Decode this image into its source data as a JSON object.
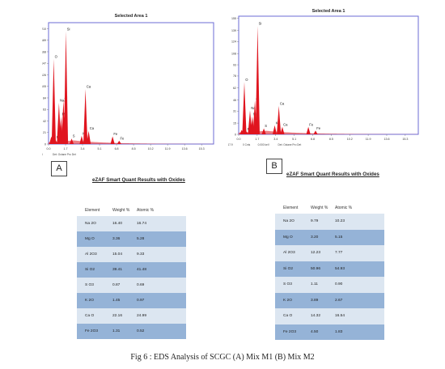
{
  "chart_data": [
    {
      "type": "bar",
      "panel": "A",
      "title": "Selected Area 1",
      "xlim": [
        0,
        16.5
      ],
      "ylim": [
        0,
        221
      ],
      "x_ticks": [
        "0.0",
        "1.7",
        "3.4",
        "5.1",
        "6.8",
        "8.5",
        "10.2",
        "11.9",
        "13.6",
        "15.3"
      ],
      "y_ticks": [
        "0",
        "21",
        "42",
        "63",
        "84",
        "105",
        "126",
        "147",
        "168",
        "189",
        "210"
      ],
      "footer": {
        "lsec": "Lsec: 28.8",
        "det": "Det: Octane Pro Det"
      },
      "peaks": [
        {
          "x": 0.28,
          "y": 14,
          "label": "C"
        },
        {
          "x": 0.52,
          "y": 155,
          "label": "O"
        },
        {
          "x": 0.7,
          "y": 8,
          "label": "Fe"
        },
        {
          "x": 1.04,
          "y": 75,
          "label": "Na"
        },
        {
          "x": 1.25,
          "y": 50,
          "label": "Mg"
        },
        {
          "x": 1.49,
          "y": 80,
          "label": "Al"
        },
        {
          "x": 1.74,
          "y": 205,
          "label": "Si"
        },
        {
          "x": 2.31,
          "y": 10,
          "label": "S"
        },
        {
          "x": 3.31,
          "y": 15,
          "label": "K"
        },
        {
          "x": 3.69,
          "y": 100,
          "label": "Ca"
        },
        {
          "x": 4.01,
          "y": 24,
          "label": "Ca"
        },
        {
          "x": 6.4,
          "y": 14,
          "label": "Fe"
        },
        {
          "x": 7.06,
          "y": 6,
          "label": "Fe"
        }
      ]
    },
    {
      "type": "bar",
      "panel": "B",
      "title": "Selected Area 1",
      "xlim": [
        0,
        16.5
      ],
      "ylim": [
        0,
        158
      ],
      "x_ticks": [
        "0.0",
        "1.7",
        "3.4",
        "5.1",
        "6.8",
        "8.5",
        "10.2",
        "11.9",
        "13.6",
        "15.3"
      ],
      "y_ticks": [
        "0",
        "15",
        "31",
        "46",
        "62",
        "78",
        "93",
        "108",
        "124",
        "139",
        "155"
      ],
      "footer": {
        "lsec": "Lsec: 17.9",
        "cnts": "0 Cnts",
        "kev": "0.000 keV",
        "det": "Det: Octane Pro Det"
      },
      "peaks": [
        {
          "x": 0.28,
          "y": 6,
          "label": "C"
        },
        {
          "x": 0.52,
          "y": 70,
          "label": "O"
        },
        {
          "x": 0.7,
          "y": 4,
          "label": "Fe"
        },
        {
          "x": 1.04,
          "y": 32,
          "label": "Na"
        },
        {
          "x": 1.25,
          "y": 24,
          "label": "Mg"
        },
        {
          "x": 1.49,
          "y": 45,
          "label": "Al"
        },
        {
          "x": 1.74,
          "y": 145,
          "label": "Si"
        },
        {
          "x": 2.31,
          "y": 8,
          "label": "S"
        },
        {
          "x": 3.31,
          "y": 12,
          "label": "K"
        },
        {
          "x": 3.69,
          "y": 38,
          "label": "Ca"
        },
        {
          "x": 4.01,
          "y": 10,
          "label": "Ca"
        },
        {
          "x": 6.4,
          "y": 10,
          "label": "Fe"
        },
        {
          "x": 7.06,
          "y": 5,
          "label": "Fe"
        }
      ]
    },
    {
      "type": "table",
      "panel": "A",
      "title": "eZAF Smart Quant Results with Oxides",
      "columns": [
        "Element",
        "Weight %",
        "Atomic %"
      ],
      "rows": [
        [
          "Na 2O",
          "16.40",
          "16.74"
        ],
        [
          "Mg O",
          "3.36",
          "5.28"
        ],
        [
          "Al 2O3",
          "15.04",
          "9.33"
        ],
        [
          "Si O2",
          "39.41",
          "41.48"
        ],
        [
          "S O3",
          "0.87",
          "0.69"
        ],
        [
          "K 2O",
          "1.45",
          "0.97"
        ],
        [
          "Ca O",
          "22.16",
          "24.99"
        ],
        [
          "Fe 2O3",
          "1.31",
          "0.52"
        ]
      ]
    },
    {
      "type": "table",
      "panel": "B",
      "title": "eZAF Smart Quant Results with Oxides",
      "columns": [
        "Element",
        "Weight %",
        "Atomic %"
      ],
      "rows": [
        [
          "Na 2O",
          "9.79",
          "10.23"
        ],
        [
          "Mg O",
          "3.20",
          "5.15"
        ],
        [
          "Al 2O3",
          "12.23",
          "7.77"
        ],
        [
          "Si O2",
          "50.96",
          "54.93"
        ],
        [
          "S O3",
          "1.11",
          "0.90"
        ],
        [
          "K 2O",
          "3.89",
          "2.67"
        ],
        [
          "Ca O",
          "14.32",
          "16.54"
        ],
        [
          "Fe 2O3",
          "4.50",
          "1.83"
        ]
      ]
    }
  ],
  "labels": {
    "a": "A",
    "b": "B"
  },
  "caption": "Fig 6 : EDS Analysis of SCGC (A) Mix M1 (B) Mix M2",
  "colors": {
    "frame": "#6b6bd6",
    "peak": "#e0151f",
    "table_light": "#dce6f1",
    "table_dark": "#95b3d7"
  }
}
